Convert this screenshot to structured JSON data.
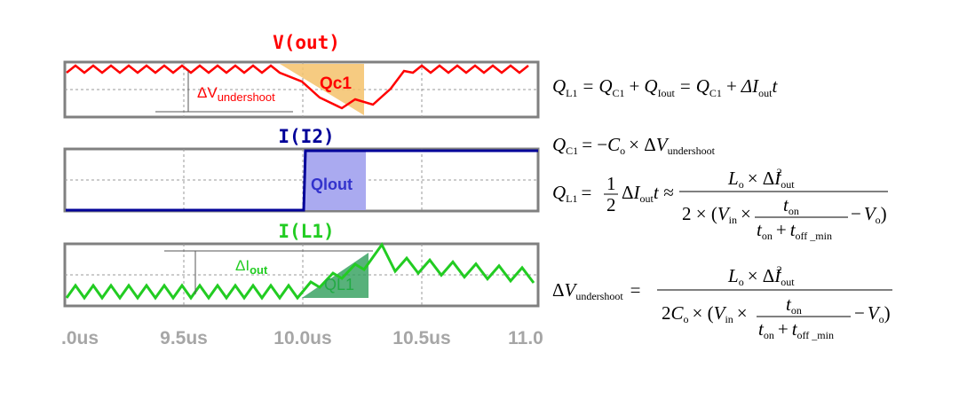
{
  "plots": [
    {
      "title": "V(out)",
      "labels": [
        "ΔV",
        "undershoot",
        "Qc1"
      ]
    },
    {
      "title": "I(I2)",
      "labels": [
        "Qlout"
      ]
    },
    {
      "title": "I(L1)",
      "labels": [
        "ΔI",
        "out",
        "QL1"
      ]
    }
  ],
  "x_ticks": [
    ".0us",
    "9.5us",
    "10.0us",
    "10.5us",
    "11.0"
  ],
  "equations": [
    [
      "Q",
      "L1",
      "=",
      "Q",
      "C1",
      "+",
      "Q",
      "Iout",
      "=",
      "Q",
      "C1",
      "+",
      "ΔI",
      "out",
      "t"
    ],
    [
      "Q",
      "C1",
      "= −",
      "C",
      "o",
      "× Δ",
      "V",
      "undershoot"
    ],
    [
      "Q",
      "L1",
      "=",
      "1",
      "2",
      "Δ",
      "I",
      "out",
      "t ≈",
      "L",
      "o",
      "× Δ",
      "I",
      "out",
      "2",
      "2 × (",
      "V",
      "in",
      "×",
      "t",
      "on",
      "t",
      "on",
      "+",
      "t",
      "off _min",
      "−",
      "V",
      "o",
      ")"
    ],
    [
      "Δ",
      "V",
      "undershoot",
      "=",
      "L",
      "o",
      "× Δ",
      "I",
      "out",
      "2",
      "2",
      "C",
      "o",
      "× (",
      "V",
      "in",
      "×",
      "t",
      "on",
      "t",
      "on",
      "+",
      "t",
      "off _min",
      "−",
      "V",
      "o",
      ")"
    ]
  ]
}
